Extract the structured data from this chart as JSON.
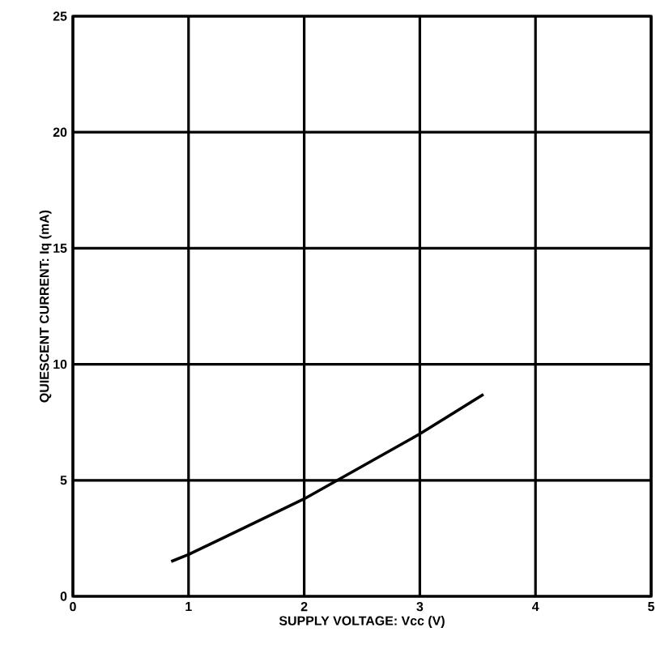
{
  "chart_data": {
    "type": "line",
    "xlabel": "SUPPLY VOLTAGE: Vcc (V)",
    "ylabel": "QUIESCENT CURRENT: Iq (mA)",
    "x": [
      0.85,
      1,
      1.5,
      2,
      2.5,
      3,
      3.55
    ],
    "series": [
      {
        "color": "#000000",
        "values": [
          1.5,
          1.8,
          3,
          4.2,
          5.6,
          7,
          8.7
        ]
      }
    ],
    "xlim": [
      0,
      5
    ],
    "ylim": [
      0,
      25
    ],
    "xticks": [
      0,
      1,
      2,
      3,
      4,
      5
    ],
    "yticks": [
      0,
      5,
      10,
      15,
      20,
      25
    ],
    "grid": true,
    "marker": "none",
    "line_style": "solid"
  }
}
